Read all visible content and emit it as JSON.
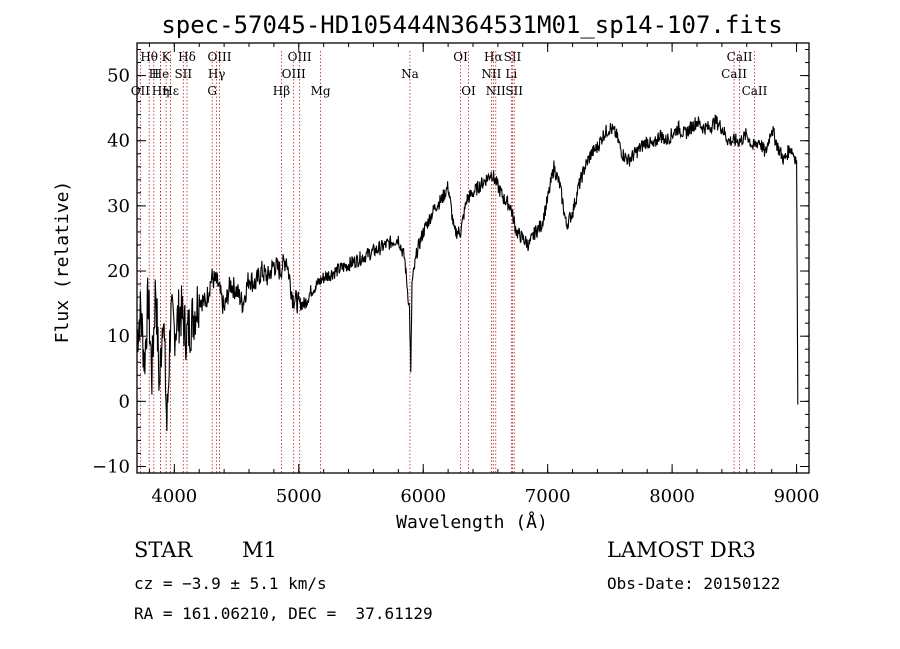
{
  "chart_data": {
    "type": "line",
    "title": "spec-57045-HD105444N364531M01_sp14-107.fits",
    "xlabel": "Wavelength (Å)",
    "ylabel": "Flux (relative)",
    "xlim": [
      3700,
      9100
    ],
    "ylim": [
      -11,
      55
    ],
    "xticks": [
      4000,
      5000,
      6000,
      7000,
      8000,
      9000
    ],
    "yticks": [
      -10,
      0,
      10,
      20,
      30,
      40,
      50
    ],
    "series": [
      {
        "name": "spectrum",
        "x": [
          3700,
          3730,
          3760,
          3790,
          3820,
          3850,
          3880,
          3910,
          3940,
          3970,
          4000,
          4050,
          4100,
          4150,
          4200,
          4250,
          4300,
          4350,
          4400,
          4450,
          4500,
          4550,
          4600,
          4650,
          4700,
          4750,
          4800,
          4850,
          4900,
          4950,
          5000,
          5050,
          5100,
          5150,
          5200,
          5300,
          5400,
          5500,
          5600,
          5700,
          5800,
          5850,
          5890,
          5900,
          5910,
          5950,
          6000,
          6050,
          6100,
          6150,
          6200,
          6250,
          6300,
          6350,
          6400,
          6450,
          6500,
          6550,
          6600,
          6650,
          6700,
          6750,
          6800,
          6850,
          6900,
          6950,
          7000,
          7050,
          7100,
          7150,
          7200,
          7250,
          7300,
          7350,
          7400,
          7450,
          7500,
          7550,
          7600,
          7650,
          7700,
          7750,
          7800,
          7850,
          7900,
          7950,
          8000,
          8050,
          8100,
          8150,
          8200,
          8250,
          8300,
          8350,
          8400,
          8450,
          8500,
          8550,
          8600,
          8650,
          8700,
          8750,
          8800,
          8850,
          8900,
          8950,
          9000,
          9010
        ],
        "y": [
          10,
          14,
          6,
          16,
          4,
          18,
          2,
          15,
          -4,
          13,
          11,
          14,
          10,
          13,
          16,
          15,
          19,
          18,
          14,
          18,
          17,
          15,
          19,
          18,
          20,
          19,
          21,
          20,
          22,
          16,
          15,
          15,
          17,
          18,
          19,
          20,
          21,
          22,
          23,
          24,
          25,
          22,
          14,
          4,
          18,
          23,
          26,
          28,
          30,
          31,
          33,
          26,
          26,
          31,
          32,
          33,
          34,
          35,
          33,
          31,
          30,
          26,
          25,
          24,
          26,
          27,
          31,
          36,
          33,
          27,
          29,
          33,
          36,
          38,
          39,
          41,
          42,
          41,
          38,
          37,
          38,
          39,
          40,
          39,
          41,
          40,
          41,
          42,
          41,
          42,
          43,
          42,
          42,
          43,
          42,
          40,
          40,
          40,
          41,
          39,
          40,
          38,
          42,
          39,
          37,
          39,
          37,
          -0.5
        ]
      }
    ],
    "spectral_lines": [
      {
        "label": "Hθ",
        "x": 3798,
        "row": 1
      },
      {
        "label": "K",
        "x": 3934,
        "row": 1
      },
      {
        "label": "Hδ",
        "x": 4102,
        "row": 1
      },
      {
        "label": "OIII",
        "x": 4363,
        "row": 1
      },
      {
        "label": "OIII",
        "x": 5007,
        "row": 1
      },
      {
        "label": "OI",
        "x": 6300,
        "row": 1
      },
      {
        "label": "Hα",
        "x": 6563,
        "row": 1
      },
      {
        "label": "SII",
        "x": 6717,
        "row": 1
      },
      {
        "label": "CaII",
        "x": 8542,
        "row": 1
      },
      {
        "label": "H",
        "x": 3835,
        "row": 2
      },
      {
        "label": "He",
        "x": 3889,
        "row": 2
      },
      {
        "label": "SII",
        "x": 4072,
        "row": 2
      },
      {
        "label": "Hγ",
        "x": 4340,
        "row": 2
      },
      {
        "label": "OIII",
        "x": 4959,
        "row": 2
      },
      {
        "label": "Na",
        "x": 5893,
        "row": 2
      },
      {
        "label": "NII",
        "x": 6548,
        "row": 2
      },
      {
        "label": "Li",
        "x": 6708,
        "row": 2
      },
      {
        "label": "CaII",
        "x": 8498,
        "row": 2
      },
      {
        "label": "OII",
        "x": 3727,
        "row": 3
      },
      {
        "label": "Hε",
        "x": 3970,
        "row": 3
      },
      {
        "label": "Hη",
        "x": 3889,
        "row": 3
      },
      {
        "label": "G",
        "x": 4304,
        "row": 3
      },
      {
        "label": "Hβ",
        "x": 4861,
        "row": 3
      },
      {
        "label": "Mg",
        "x": 5175,
        "row": 3
      },
      {
        "label": "OI",
        "x": 6364,
        "row": 3
      },
      {
        "label": "NII",
        "x": 6583,
        "row": 3
      },
      {
        "label": "SII",
        "x": 6731,
        "row": 3
      },
      {
        "label": "CaII",
        "x": 8662,
        "row": 3
      }
    ]
  },
  "info": {
    "object_type": "STAR",
    "subclass": "M1",
    "survey": "LAMOST DR3",
    "cz": "cz = −3.9 ± 5.1 km/s",
    "obs_date": "Obs-Date: 20150122",
    "radec": "RA = 161.06210, DEC =  37.61129"
  },
  "colors": {
    "line": "#000000",
    "marker": "#b22222",
    "background": "#ffffff"
  }
}
